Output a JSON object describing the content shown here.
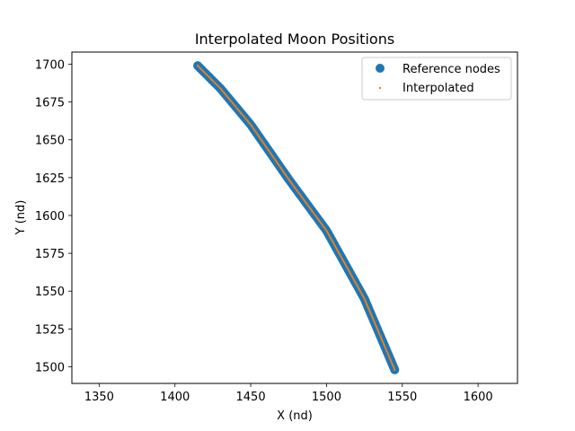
{
  "chart_data": {
    "type": "scatter",
    "title": "Interpolated Moon Positions",
    "xlabel": "X (nd)",
    "ylabel": "Y (nd)",
    "xlim": [
      1332,
      1626
    ],
    "ylim": [
      1489,
      1708
    ],
    "xticks": [
      1350,
      1400,
      1450,
      1500,
      1550,
      1600
    ],
    "yticks": [
      1500,
      1525,
      1550,
      1575,
      1600,
      1625,
      1650,
      1675,
      1700
    ],
    "grid": false,
    "legend_position": "upper-right",
    "series": [
      {
        "name": "Reference nodes",
        "marker": "circle-large",
        "color": "#1f77b4",
        "curve": [
          [
            1415,
            1699
          ],
          [
            1430,
            1684
          ],
          [
            1450,
            1660
          ],
          [
            1475,
            1624
          ],
          [
            1500,
            1590
          ],
          [
            1525,
            1545
          ],
          [
            1545,
            1498
          ]
        ],
        "point_count": 200
      },
      {
        "name": "Interpolated",
        "marker": "dot-small",
        "color": "#ff7f0e",
        "curve": [
          [
            1415,
            1699
          ],
          [
            1430,
            1684
          ],
          [
            1450,
            1660
          ],
          [
            1475,
            1624
          ],
          [
            1500,
            1590
          ],
          [
            1525,
            1545
          ],
          [
            1545,
            1498
          ]
        ],
        "point_count": 200
      }
    ]
  }
}
